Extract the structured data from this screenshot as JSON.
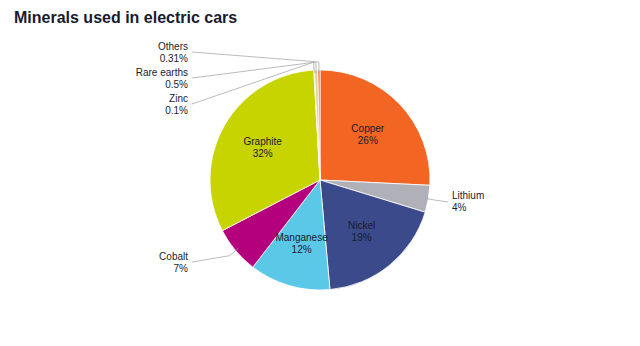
{
  "chart_data": {
    "type": "pie",
    "title": "Minerals used in electric cars",
    "categories": [
      "Copper",
      "Lithium",
      "Nickel",
      "Manganese",
      "Cobalt",
      "Graphite",
      "Zinc",
      "Rare earths",
      "Others"
    ],
    "values": [
      26,
      4,
      19,
      12,
      7,
      32,
      0.1,
      0.5,
      0.31
    ],
    "value_labels": [
      "26%",
      "4%",
      "19%",
      "12%",
      "7%",
      "32%",
      "0.1%",
      "0.5%",
      "0.31%"
    ],
    "colors": [
      "#f26522",
      "#b0b0b8",
      "#3b4a8a",
      "#5bc8e8",
      "#b5007e",
      "#c8d400",
      "#d0d0d0",
      "#d4d89a",
      "#f26522"
    ],
    "data_labels": true
  }
}
